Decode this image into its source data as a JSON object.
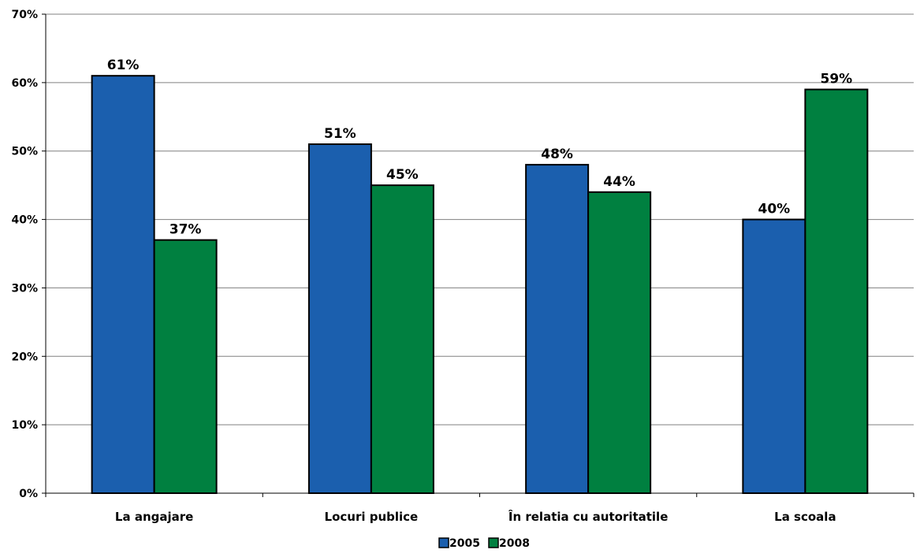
{
  "chart_data": {
    "type": "bar",
    "title": "",
    "xlabel": "",
    "ylabel": "",
    "categories": [
      "La angajare",
      "Locuri publice",
      "În relatia cu autoritatile",
      "La scoala"
    ],
    "series": [
      {
        "name": "2005",
        "values": [
          61,
          51,
          48,
          40
        ],
        "labels": [
          "61%",
          "51%",
          "48%",
          "40%"
        ],
        "color": "#1B5FAE"
      },
      {
        "name": "2008",
        "values": [
          37,
          45,
          44,
          59
        ],
        "labels": [
          "37%",
          "45%",
          "44%",
          "59%"
        ],
        "color": "#008040"
      }
    ],
    "ylim": [
      0,
      70
    ],
    "yticks": [
      0,
      10,
      20,
      30,
      40,
      50,
      60,
      70
    ],
    "ytick_labels": [
      "0%",
      "10%",
      "20%",
      "30%",
      "40%",
      "50%",
      "60%",
      "70%"
    ],
    "grid": true,
    "legend": "bottom-center"
  }
}
